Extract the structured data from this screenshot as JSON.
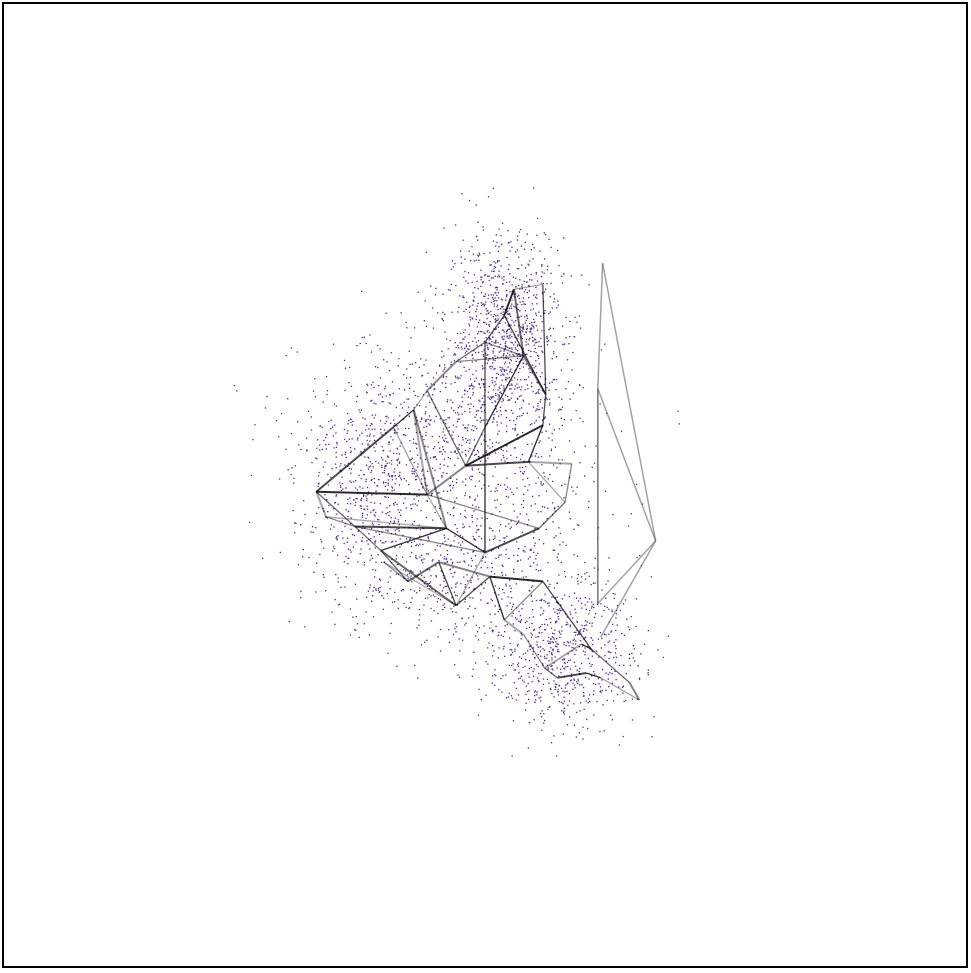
{
  "figure": {
    "background": "#ffffff",
    "frame_color": "#000000",
    "point_color": "#4b2a8c",
    "edge_color": "#000000"
  },
  "chart_data": {
    "type": "scatter",
    "title": "",
    "xlabel": "",
    "ylabel": "",
    "axes_visible": false,
    "grid": false,
    "legend": "none",
    "xlim": [
      0,
      1
    ],
    "ylim": [
      0,
      1
    ],
    "point_clusters": [
      {
        "name": "",
        "center": [
          0.52,
          0.66
        ],
        "spread": [
          0.03,
          0.05
        ],
        "count": 900
      },
      {
        "name": "",
        "center": [
          0.45,
          0.56
        ],
        "spread": [
          0.07,
          0.05
        ],
        "count": 600
      },
      {
        "name": "",
        "center": [
          0.38,
          0.5
        ],
        "spread": [
          0.04,
          0.04
        ],
        "count": 400
      },
      {
        "name": "",
        "center": [
          0.45,
          0.41
        ],
        "spread": [
          0.06,
          0.04
        ],
        "count": 500
      },
      {
        "name": "",
        "center": [
          0.58,
          0.33
        ],
        "spread": [
          0.04,
          0.04
        ],
        "count": 700
      },
      {
        "name": "",
        "center": [
          0.52,
          0.5
        ],
        "spread": [
          0.05,
          0.07
        ],
        "count": 300
      }
    ],
    "graph_nodes": [
      [
        0.325,
        0.493
      ],
      [
        0.335,
        0.467
      ],
      [
        0.365,
        0.457
      ],
      [
        0.392,
        0.432
      ],
      [
        0.405,
        0.56
      ],
      [
        0.426,
        0.578
      ],
      [
        0.44,
        0.598
      ],
      [
        0.47,
        0.628
      ],
      [
        0.5,
        0.648
      ],
      [
        0.52,
        0.676
      ],
      [
        0.53,
        0.703
      ],
      [
        0.56,
        0.708
      ],
      [
        0.54,
        0.634
      ],
      [
        0.563,
        0.594
      ],
      [
        0.56,
        0.562
      ],
      [
        0.545,
        0.524
      ],
      [
        0.59,
        0.522
      ],
      [
        0.583,
        0.482
      ],
      [
        0.556,
        0.455
      ],
      [
        0.5,
        0.43
      ],
      [
        0.46,
        0.455
      ],
      [
        0.44,
        0.49
      ],
      [
        0.48,
        0.52
      ],
      [
        0.5,
        0.56
      ],
      [
        0.47,
        0.375
      ],
      [
        0.505,
        0.405
      ],
      [
        0.52,
        0.36
      ],
      [
        0.54,
        0.345
      ],
      [
        0.562,
        0.31
      ],
      [
        0.575,
        0.3
      ],
      [
        0.605,
        0.305
      ],
      [
        0.62,
        0.3
      ],
      [
        0.66,
        0.277
      ],
      [
        0.65,
        0.295
      ],
      [
        0.61,
        0.33
      ],
      [
        0.56,
        0.4
      ],
      [
        0.6,
        0.335
      ],
      [
        0.395,
        0.42
      ],
      [
        0.42,
        0.4
      ],
      [
        0.452,
        0.42
      ]
    ],
    "graph_edges": [
      [
        0,
        1
      ],
      [
        1,
        2
      ],
      [
        2,
        3
      ],
      [
        0,
        4
      ],
      [
        4,
        5
      ],
      [
        5,
        6
      ],
      [
        6,
        7
      ],
      [
        7,
        8
      ],
      [
        8,
        9
      ],
      [
        9,
        10
      ],
      [
        10,
        11
      ],
      [
        8,
        12
      ],
      [
        12,
        13
      ],
      [
        13,
        14
      ],
      [
        14,
        15
      ],
      [
        15,
        16
      ],
      [
        16,
        17
      ],
      [
        17,
        18
      ],
      [
        18,
        19
      ],
      [
        19,
        20
      ],
      [
        20,
        21
      ],
      [
        21,
        22
      ],
      [
        22,
        23
      ],
      [
        23,
        8
      ],
      [
        0,
        21
      ],
      [
        1,
        20
      ],
      [
        2,
        19
      ],
      [
        3,
        24
      ],
      [
        24,
        25
      ],
      [
        25,
        26
      ],
      [
        26,
        27
      ],
      [
        27,
        28
      ],
      [
        28,
        29
      ],
      [
        29,
        30
      ],
      [
        30,
        31
      ],
      [
        31,
        32
      ],
      [
        32,
        33
      ],
      [
        33,
        34
      ],
      [
        34,
        35
      ],
      [
        35,
        25
      ],
      [
        24,
        37
      ],
      [
        37,
        38
      ],
      [
        38,
        39
      ],
      [
        39,
        24
      ],
      [
        36,
        34
      ],
      [
        36,
        28
      ],
      [
        26,
        35
      ],
      [
        3,
        38
      ],
      [
        22,
        15
      ],
      [
        23,
        12
      ],
      [
        21,
        4
      ],
      [
        20,
        5
      ],
      [
        6,
        22
      ],
      [
        9,
        13
      ],
      [
        14,
        22
      ],
      [
        17,
        15
      ],
      [
        18,
        21
      ],
      [
        10,
        12
      ],
      [
        11,
        13
      ],
      [
        19,
        23
      ],
      [
        5,
        21
      ],
      [
        7,
        12
      ],
      [
        0,
        2
      ],
      [
        2,
        20
      ],
      [
        3,
        20
      ],
      [
        24,
        19
      ],
      [
        39,
        25
      ]
    ],
    "outlier_nodes": [
      [
        0.622,
        0.73
      ],
      [
        0.617,
        0.6
      ],
      [
        0.677,
        0.442
      ],
      [
        0.617,
        0.377
      ],
      [
        0.62,
        0.342
      ]
    ],
    "outlier_edges": [
      [
        0,
        1
      ],
      [
        1,
        2
      ],
      [
        2,
        3
      ],
      [
        3,
        1
      ],
      [
        0,
        2
      ],
      [
        2,
        4
      ],
      [
        1,
        3
      ]
    ]
  }
}
